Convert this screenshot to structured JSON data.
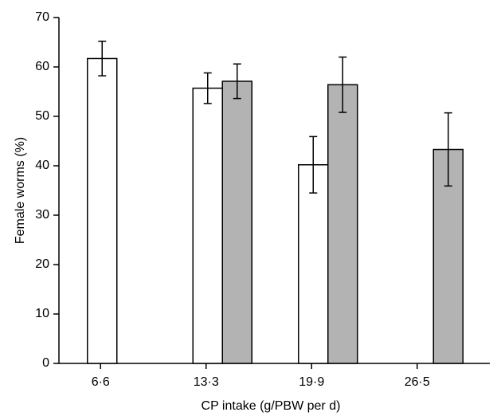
{
  "chart_data": {
    "type": "bar",
    "x_label": "CP intake (g/PBW per d)",
    "y_label": "Female worms (%)",
    "categories": [
      "6·6",
      "13·3",
      "19·9",
      "26·5"
    ],
    "series": [
      {
        "color": "#ffffff",
        "values": [
          61.7,
          55.7,
          40.2,
          null
        ],
        "errors": [
          3.5,
          3.1,
          5.7,
          null
        ]
      },
      {
        "color": "#b3b3b3",
        "values": [
          null,
          57.1,
          56.4,
          43.3
        ],
        "errors": [
          null,
          3.5,
          5.6,
          7.4
        ]
      }
    ],
    "ylim": [
      0,
      70
    ],
    "yticks": [
      0,
      10,
      20,
      30,
      40,
      50,
      60,
      70
    ]
  }
}
